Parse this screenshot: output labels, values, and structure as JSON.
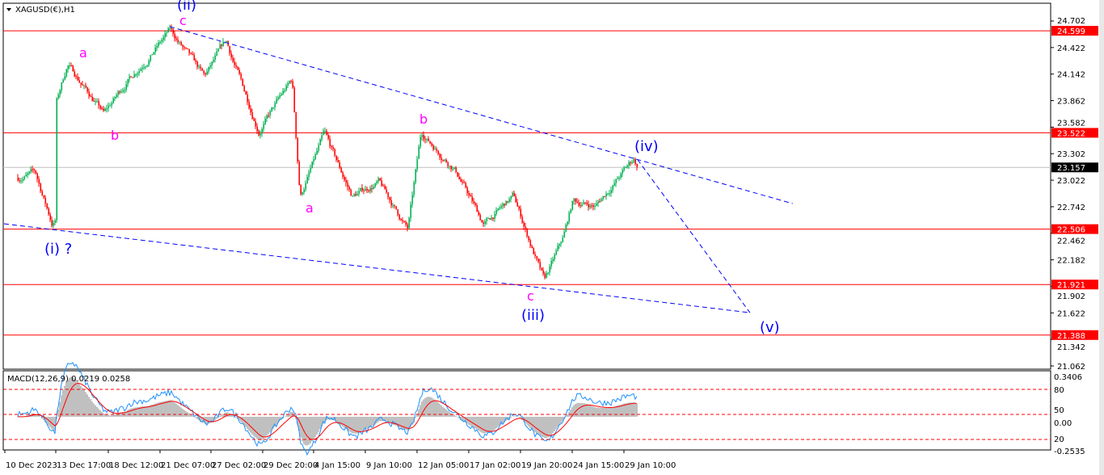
{
  "window": {
    "title": "XAGUSD(€),H1",
    "menu_icon": "triangle-down-icon"
  },
  "colors": {
    "bull": "#00b050",
    "bear": "#ff0000",
    "level": "#ff0000",
    "trendline": "#0000ff",
    "wave_primary": "#0000ff",
    "wave_minor": "#ff00ff",
    "macd_hist": "#c0c0c0",
    "macd_signal": "#ff0000",
    "macd_line": "#1e90ff",
    "current_price_bg": "#000000"
  },
  "chart_data": {
    "type": "candlestick",
    "symbol": "XAGUSD(€)",
    "timeframe": "H1",
    "ylim": [
      21.062,
      24.702
    ],
    "y_ticks": [
      "24.702",
      "24.422",
      "24.142",
      "23.862",
      "23.582",
      "23.302",
      "23.022",
      "22.742",
      "22.462",
      "22.182",
      "21.902",
      "21.622",
      "21.342",
      "21.062"
    ],
    "x_ticks": [
      "10 Dec 2023",
      "13 Dec 17:00",
      "18 Dec 12:00",
      "21 Dec 07:00",
      "27 Dec 02:00",
      "29 Dec 20:00",
      "4 Jan 15:00",
      "9 Jan 10:00",
      "12 Jan 05:00",
      "17 Jan 02:00",
      "19 Jan 20:00",
      "24 Jan 15:00",
      "29 Jan 10:00"
    ],
    "price_swings": [
      {
        "time": "11 Dec 00:00",
        "price": 23.05
      },
      {
        "time": "12 Dec 06:00",
        "price": 23.1
      },
      {
        "time": "13 Dec 12:00",
        "price": 22.56
      },
      {
        "time": "13 Dec 17:00",
        "price": 22.6
      },
      {
        "time": "13 Dec 20:00",
        "price": 23.85
      },
      {
        "time": "14 Dec 20:00",
        "price": 24.25
      },
      {
        "time": "18 Dec 04:00",
        "price": 23.72
      },
      {
        "time": "19 Dec 18:00",
        "price": 24.12
      },
      {
        "time": "20 Dec 14:00",
        "price": 24.3
      },
      {
        "time": "22 Dec 12:00",
        "price": 24.6
      },
      {
        "time": "26 Dec 10:00",
        "price": 24.1
      },
      {
        "time": "27 Dec 22:00",
        "price": 24.48
      },
      {
        "time": "29 Dec 16:00",
        "price": 23.55
      },
      {
        "time": "2 Jan 06:00",
        "price": 24.08
      },
      {
        "time": "3 Jan 04:00",
        "price": 22.85
      },
      {
        "time": "5 Jan 16:00",
        "price": 23.5
      },
      {
        "time": "8 Jan 06:00",
        "price": 22.85
      },
      {
        "time": "10 Jan 04:00",
        "price": 23.0
      },
      {
        "time": "11 Jan 18:00",
        "price": 22.5
      },
      {
        "time": "12 Jan 16:00",
        "price": 23.52
      },
      {
        "time": "15 Jan 20:00",
        "price": 23.15
      },
      {
        "time": "17 Jan 22:00",
        "price": 22.55
      },
      {
        "time": "19 Jan 12:00",
        "price": 22.85
      },
      {
        "time": "22 Jan 02:00",
        "price": 21.95
      },
      {
        "time": "23 Jan 20:00",
        "price": 22.4
      },
      {
        "time": "24 Jan 18:00",
        "price": 22.8
      },
      {
        "time": "26 Jan 20:00",
        "price": 22.75
      },
      {
        "time": "30 Jan 10:00",
        "price": 23.25
      },
      {
        "time": "30 Jan 18:00",
        "price": 23.157
      }
    ],
    "current_price": "23.157",
    "levels": [
      "24.599",
      "23.522",
      "22.506",
      "21.921",
      "21.388"
    ],
    "trendlines": [
      {
        "from": {
          "time": "22 Dec 12:00",
          "price": 24.642
        },
        "to": {
          "time": "14 Feb 03:00",
          "price": 22.775
        }
      },
      {
        "from": {
          "time": "10 Dec 2023",
          "price": 22.562
        },
        "to": {
          "time": "10 Feb 04:00",
          "price": 21.624
        }
      },
      {
        "from": {
          "time": "30 Jan 18:00",
          "price": 23.24
        },
        "to": {
          "time": "10 Feb 04:00",
          "price": 21.624
        }
      }
    ],
    "wave_labels": [
      {
        "text": "(ii)",
        "kind": "primary"
      },
      {
        "text": "c",
        "kind": "minor"
      },
      {
        "text": "a",
        "kind": "minor"
      },
      {
        "text": "b",
        "kind": "minor"
      },
      {
        "text": "(i) ?",
        "kind": "primary"
      },
      {
        "text": "a",
        "kind": "minor"
      },
      {
        "text": "b",
        "kind": "minor"
      },
      {
        "text": "c",
        "kind": "minor"
      },
      {
        "text": "(iii)",
        "kind": "primary"
      },
      {
        "text": "(iv)",
        "kind": "primary"
      },
      {
        "text": "(v)",
        "kind": "primary"
      }
    ],
    "indicator": {
      "label": "MACD(12,26,9) 0.0219 0.0258",
      "ylim": [
        -0.2535,
        0.3406
      ],
      "axis_labels": [
        "0.3406",
        "80",
        "50",
        "0.00",
        "20",
        "-0.2535"
      ],
      "levels": [
        80,
        50,
        20
      ]
    }
  }
}
